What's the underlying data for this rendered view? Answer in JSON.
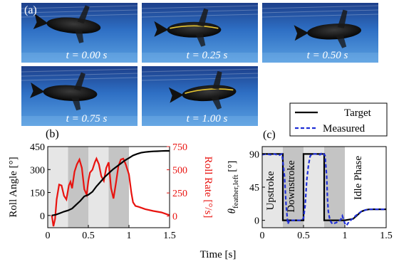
{
  "figure": {
    "panel_a": {
      "label": "(a)",
      "frames": [
        {
          "time_label": "t = 0.00 s"
        },
        {
          "time_label": "t = 0.25 s"
        },
        {
          "time_label": "t = 0.50 s"
        },
        {
          "time_label": "t = 0.75 s"
        },
        {
          "time_label": "t = 1.00 s"
        }
      ]
    },
    "panel_b": {
      "label": "(b)"
    },
    "panel_c": {
      "label": "(c)"
    },
    "shared_xlabel": "Time [s]",
    "colors": {
      "water_top": "#1d3f8a",
      "water_mid": "#2e6fc4",
      "water_bottom": "#5a9fe0",
      "roll_angle": "#000000",
      "roll_rate": "#e8130f",
      "target": "#000000",
      "measured": "#1f2fd6",
      "shade_light": "#e6e6e6",
      "shade_dark": "#c4c4c4"
    }
  },
  "chart_data": [
    {
      "type": "line",
      "panel": "(b)",
      "xlabel": "Time [s]",
      "ylabel": "Roll Angle [°]",
      "ylabel_right": "Roll Rate [°/s]",
      "xlim": [
        0,
        1.5
      ],
      "ylim": [
        -80,
        450
      ],
      "ylim_right": [
        -125,
        750
      ],
      "xticks": [
        0,
        0.5,
        1,
        1.5
      ],
      "xtick_labels": [
        "0",
        "0.5",
        "1",
        "1.5"
      ],
      "yticks": [
        0,
        150,
        300,
        450
      ],
      "yticks_right": [
        0,
        250,
        500,
        750
      ],
      "shaded_bands": [
        {
          "x0": 0,
          "x1": 0.25,
          "shade": "light"
        },
        {
          "x0": 0.25,
          "x1": 0.5,
          "shade": "dark"
        },
        {
          "x0": 0.5,
          "x1": 0.75,
          "shade": "light"
        },
        {
          "x0": 0.75,
          "x1": 1.0,
          "shade": "dark"
        }
      ],
      "series": [
        {
          "axis": "left",
          "x": [
            0.05,
            0.1,
            0.15,
            0.2,
            0.25,
            0.3,
            0.35,
            0.4,
            0.45,
            0.5,
            0.55,
            0.6,
            0.65,
            0.7,
            0.75,
            0.8,
            0.85,
            0.9,
            0.95,
            1.0,
            1.05,
            1.1,
            1.15,
            1.2,
            1.25,
            1.3,
            1.35,
            1.4,
            1.45,
            1.5
          ],
          "values": [
            0,
            5,
            15,
            25,
            33,
            45,
            70,
            95,
            125,
            135,
            155,
            190,
            220,
            250,
            275,
            300,
            320,
            340,
            360,
            375,
            392,
            402,
            410,
            414,
            417,
            419,
            420,
            421,
            422,
            422
          ]
        },
        {
          "axis": "right",
          "x": [
            0.05,
            0.07,
            0.09,
            0.11,
            0.14,
            0.17,
            0.2,
            0.23,
            0.26,
            0.28,
            0.3,
            0.33,
            0.36,
            0.39,
            0.42,
            0.45,
            0.48,
            0.5,
            0.52,
            0.55,
            0.58,
            0.6,
            0.63,
            0.66,
            0.69,
            0.72,
            0.75,
            0.78,
            0.81,
            0.84,
            0.87,
            0.9,
            0.93,
            0.96,
            1.0,
            1.03,
            1.05,
            1.08,
            1.12,
            1.2,
            1.3,
            1.4,
            1.5
          ],
          "values": [
            10,
            -110,
            -30,
            180,
            340,
            330,
            220,
            180,
            330,
            370,
            300,
            480,
            560,
            610,
            520,
            290,
            230,
            380,
            470,
            500,
            580,
            620,
            560,
            430,
            380,
            520,
            580,
            300,
            190,
            360,
            540,
            610,
            620,
            560,
            450,
            250,
            150,
            110,
            100,
            75,
            55,
            40,
            10
          ]
        }
      ]
    },
    {
      "type": "line",
      "panel": "(c)",
      "xlabel": "Time [s]",
      "ylabel": "θfeather,left [°]",
      "xlim": [
        0,
        1.5
      ],
      "ylim": [
        -10,
        100
      ],
      "xticks": [
        0,
        0.5,
        1,
        1.5
      ],
      "xtick_labels": [
        "0",
        "0.5",
        "1",
        "1.5"
      ],
      "yticks": [
        0,
        45,
        90
      ],
      "shaded_bands": [
        {
          "x0": 0,
          "x1": 0.25,
          "shade": "light"
        },
        {
          "x0": 0.25,
          "x1": 0.5,
          "shade": "dark"
        },
        {
          "x0": 0.5,
          "x1": 0.75,
          "shade": "light"
        },
        {
          "x0": 0.75,
          "x1": 1.0,
          "shade": "dark"
        }
      ],
      "legend": {
        "placement": "top-right",
        "entries": [
          "Target",
          "Measured"
        ]
      },
      "annotations": [
        "Upstroke",
        "Downstroke",
        "Idle Phase"
      ],
      "series": [
        {
          "name": "Target",
          "style": "solid",
          "x": [
            0,
            0.25,
            0.25,
            0.5,
            0.5,
            0.75,
            0.75,
            1.0,
            1.0,
            1.1,
            1.15,
            1.2,
            1.25,
            1.3,
            1.35,
            1.4,
            1.5
          ],
          "values": [
            90,
            90,
            0,
            0,
            90,
            90,
            0,
            0,
            0,
            2,
            7,
            12,
            14,
            15,
            15,
            15,
            15
          ]
        },
        {
          "name": "Measured",
          "style": "dashed",
          "x": [
            0,
            0.05,
            0.1,
            0.15,
            0.2,
            0.24,
            0.27,
            0.29,
            0.31,
            0.33,
            0.35,
            0.4,
            0.45,
            0.48,
            0.5,
            0.52,
            0.54,
            0.56,
            0.58,
            0.6,
            0.65,
            0.7,
            0.73,
            0.76,
            0.78,
            0.79,
            0.8,
            0.82,
            0.85,
            0.9,
            0.95,
            0.97,
            1.0,
            1.02,
            1.05,
            1.1,
            1.15,
            1.2,
            1.25,
            1.3,
            1.4,
            1.5
          ],
          "values": [
            89,
            90,
            89,
            90,
            88,
            90,
            60,
            20,
            -5,
            0,
            0,
            0,
            0,
            0,
            3,
            20,
            55,
            75,
            87,
            90,
            90,
            89,
            92,
            88,
            60,
            30,
            12,
            0,
            -5,
            -3,
            1,
            6,
            -4,
            -7,
            -2,
            3,
            8,
            12,
            14,
            15,
            15,
            15
          ]
        }
      ]
    }
  ]
}
